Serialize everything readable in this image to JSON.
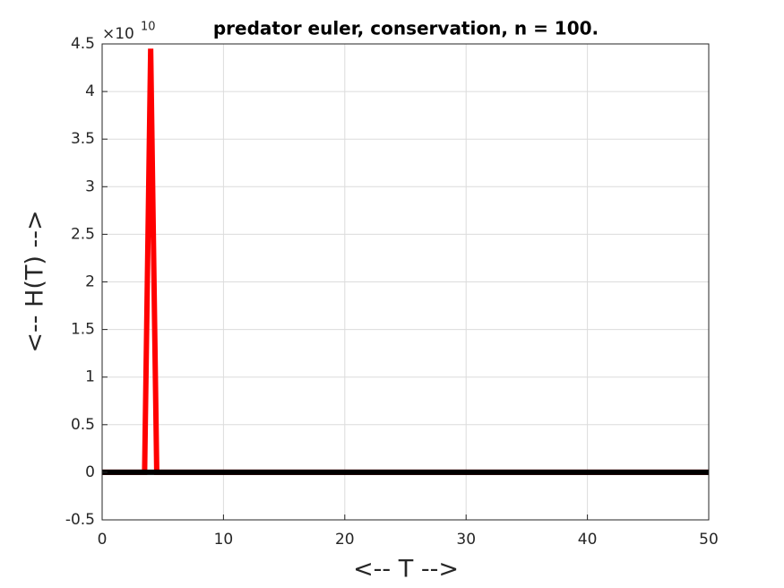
{
  "chart_data": {
    "type": "line",
    "title": "predator euler, conservation, n = 100.",
    "xlabel": "<-- T -->",
    "ylabel": "<-- H(T) -->",
    "y_multiplier": {
      "base": "×10",
      "exponent": "10"
    },
    "series": [
      {
        "color": "#ff0000",
        "x": [
          0,
          3.5,
          4,
          4.5,
          50
        ],
        "values": [
          0,
          0,
          4.45,
          0,
          0
        ]
      },
      {
        "color": "#000000",
        "x": [
          0,
          50
        ],
        "values": [
          0,
          0
        ]
      }
    ],
    "xlim": [
      0,
      50
    ],
    "xticks": [
      0,
      10,
      20,
      30,
      40,
      50
    ],
    "ylim": [
      -0.5,
      4.5
    ],
    "yticks": [
      -0.5,
      0,
      0.5,
      1,
      1.5,
      2,
      2.5,
      3,
      3.5,
      4,
      4.5
    ],
    "grid": true
  }
}
